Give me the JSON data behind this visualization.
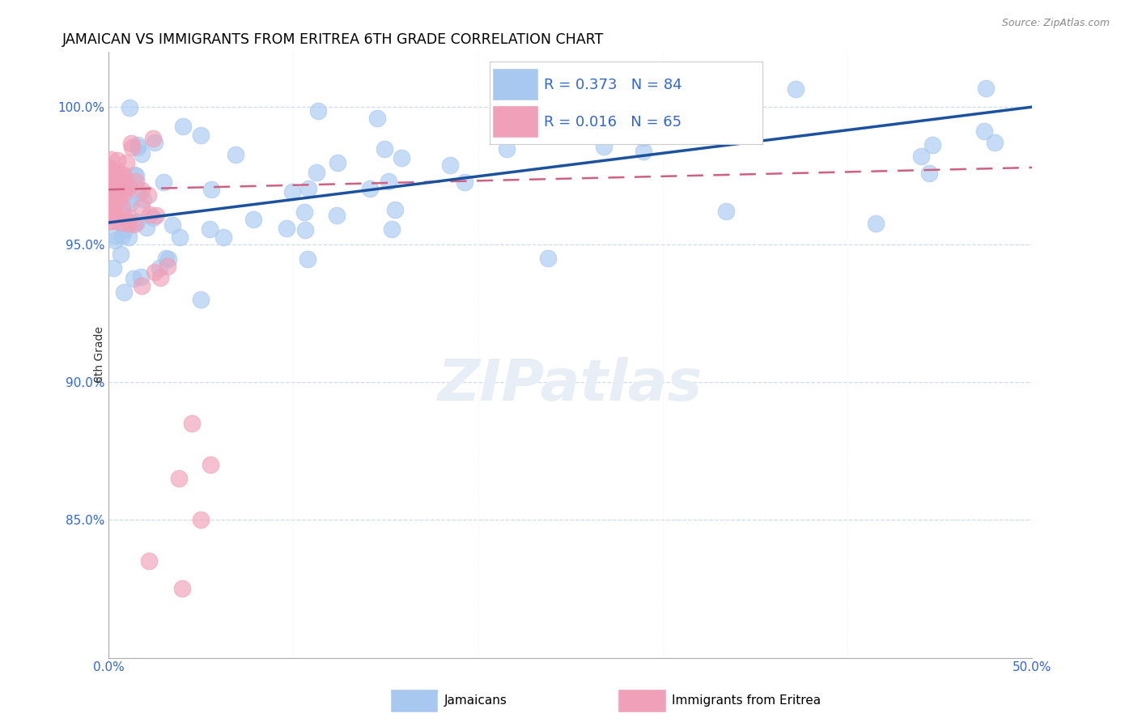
{
  "title": "JAMAICAN VS IMMIGRANTS FROM ERITREA 6TH GRADE CORRELATION CHART",
  "source": "Source: ZipAtlas.com",
  "ylabel": "6th Grade",
  "xlim": [
    0.0,
    50.0
  ],
  "ylim": [
    80.0,
    102.0
  ],
  "xtick_values": [
    0.0,
    10.0,
    20.0,
    30.0,
    40.0,
    50.0
  ],
  "xtick_labels": [
    "0.0%",
    "",
    "",
    "",
    "",
    "50.0%"
  ],
  "ytick_values": [
    100.0,
    95.0,
    90.0,
    85.0
  ],
  "ytick_labels": [
    "100.0%",
    "95.0%",
    "90.0%",
    "85.0%"
  ],
  "blue_color": "#A8C8F0",
  "pink_color": "#F0A0B8",
  "trendline_blue_color": "#1A52A0",
  "trendline_pink_color": "#D06080",
  "legend_text_color": "#3366CC",
  "axis_label_color": "#3366CC",
  "R_blue": 0.373,
  "N_blue": 84,
  "R_pink": 0.016,
  "N_pink": 65,
  "blue_trend_x0": 0,
  "blue_trend_y0": 95.8,
  "blue_trend_x1": 50,
  "blue_trend_y1": 100.0,
  "pink_trend_x0": 0,
  "pink_trend_y0": 97.0,
  "pink_trend_x1": 50,
  "pink_trend_y1": 97.8,
  "watermark": "ZIPatlas"
}
